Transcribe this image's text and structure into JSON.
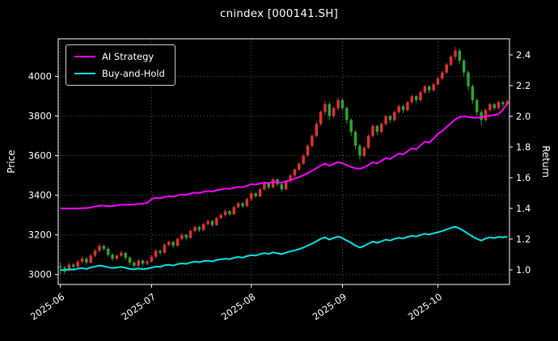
{
  "title": "cnindex [000141.SH]",
  "axes": {
    "left_label": "Price",
    "right_label": "Return",
    "x_ticks": [
      "2025-06",
      "2025-07",
      "2025-08",
      "2025-09",
      "2025-10"
    ],
    "left_ticks": [
      3000,
      3200,
      3400,
      3600,
      3800,
      4000
    ],
    "right_ticks": [
      1.0,
      1.2,
      1.4,
      1.6,
      1.8,
      2.0,
      2.2,
      2.4
    ],
    "price_range": [
      2950,
      4190
    ],
    "return_range": [
      0.905,
      2.505
    ],
    "grid": true
  },
  "legend": {
    "position": "upper-left",
    "items": [
      {
        "label": "AI Strategy",
        "color": "#ff00ff"
      },
      {
        "label": "Buy-and-Hold",
        "color": "#00e5e5"
      }
    ]
  },
  "colors": {
    "background": "#000000",
    "grid": "#555555",
    "spine": "#ffffff",
    "text": "#ffffff",
    "candle_up": "#dd3333",
    "candle_down": "#2fa32f"
  },
  "chart_data": {
    "type": "candlestick+line",
    "title": "cnindex [000141.SH]",
    "xlabel": "",
    "ylabel_left": "Price",
    "ylabel_right": "Return",
    "candle_columns": [
      "open",
      "high",
      "low",
      "close"
    ],
    "month_tick_indices": [
      0,
      21,
      44,
      65,
      87
    ],
    "dates": [
      "2025-06-02",
      "2025-06-03",
      "2025-06-04",
      "2025-06-05",
      "2025-06-06",
      "2025-06-09",
      "2025-06-10",
      "2025-06-11",
      "2025-06-12",
      "2025-06-13",
      "2025-06-16",
      "2025-06-17",
      "2025-06-18",
      "2025-06-19",
      "2025-06-20",
      "2025-06-23",
      "2025-06-24",
      "2025-06-25",
      "2025-06-26",
      "2025-06-27",
      "2025-06-30",
      "2025-07-01",
      "2025-07-02",
      "2025-07-03",
      "2025-07-04",
      "2025-07-07",
      "2025-07-08",
      "2025-07-09",
      "2025-07-10",
      "2025-07-11",
      "2025-07-14",
      "2025-07-15",
      "2025-07-16",
      "2025-07-17",
      "2025-07-18",
      "2025-07-21",
      "2025-07-22",
      "2025-07-23",
      "2025-07-24",
      "2025-07-25",
      "2025-07-28",
      "2025-07-29",
      "2025-07-30",
      "2025-07-31",
      "2025-08-01",
      "2025-08-04",
      "2025-08-05",
      "2025-08-06",
      "2025-08-07",
      "2025-08-08",
      "2025-08-11",
      "2025-08-12",
      "2025-08-13",
      "2025-08-14",
      "2025-08-15",
      "2025-08-18",
      "2025-08-19",
      "2025-08-20",
      "2025-08-21",
      "2025-08-22",
      "2025-08-25",
      "2025-08-26",
      "2025-08-27",
      "2025-08-28",
      "2025-08-29",
      "2025-09-01",
      "2025-09-02",
      "2025-09-03",
      "2025-09-04",
      "2025-09-05",
      "2025-09-08",
      "2025-09-09",
      "2025-09-10",
      "2025-09-11",
      "2025-09-12",
      "2025-09-15",
      "2025-09-16",
      "2025-09-17",
      "2025-09-18",
      "2025-09-19",
      "2025-09-22",
      "2025-09-23",
      "2025-09-24",
      "2025-09-25",
      "2025-09-26",
      "2025-09-29",
      "2025-09-30",
      "2025-10-01",
      "2025-10-02",
      "2025-10-03",
      "2025-10-06",
      "2025-10-07",
      "2025-10-08",
      "2025-10-09",
      "2025-10-10",
      "2025-10-13",
      "2025-10-14",
      "2025-10-15",
      "2025-10-16",
      "2025-10-17",
      "2025-10-20",
      "2025-10-21",
      "2025-10-22",
      "2025-10-23"
    ],
    "candles": [
      [
        3040,
        3060,
        3000,
        3035
      ],
      [
        3035,
        3045,
        3005,
        3020
      ],
      [
        3020,
        3060,
        3015,
        3050
      ],
      [
        3050,
        3058,
        3028,
        3040
      ],
      [
        3040,
        3075,
        3035,
        3065
      ],
      [
        3065,
        3092,
        3055,
        3080
      ],
      [
        3080,
        3088,
        3050,
        3060
      ],
      [
        3060,
        3105,
        3055,
        3095
      ],
      [
        3095,
        3130,
        3088,
        3120
      ],
      [
        3120,
        3158,
        3112,
        3145
      ],
      [
        3145,
        3152,
        3118,
        3130
      ],
      [
        3130,
        3138,
        3090,
        3100
      ],
      [
        3100,
        3110,
        3068,
        3080
      ],
      [
        3080,
        3102,
        3072,
        3095
      ],
      [
        3095,
        3122,
        3088,
        3110
      ],
      [
        3110,
        3115,
        3072,
        3085
      ],
      [
        3085,
        3092,
        3048,
        3060
      ],
      [
        3060,
        3070,
        3032,
        3045
      ],
      [
        3045,
        3080,
        3040,
        3070
      ],
      [
        3070,
        3078,
        3042,
        3055
      ],
      [
        3055,
        3075,
        3048,
        3065
      ],
      [
        3065,
        3098,
        3060,
        3090
      ],
      [
        3090,
        3128,
        3082,
        3120
      ],
      [
        3120,
        3126,
        3098,
        3110
      ],
      [
        3110,
        3158,
        3105,
        3150
      ],
      [
        3150,
        3172,
        3140,
        3165
      ],
      [
        3165,
        3170,
        3135,
        3145
      ],
      [
        3145,
        3188,
        3140,
        3180
      ],
      [
        3180,
        3210,
        3172,
        3200
      ],
      [
        3200,
        3206,
        3172,
        3185
      ],
      [
        3185,
        3228,
        3180,
        3220
      ],
      [
        3220,
        3248,
        3212,
        3240
      ],
      [
        3240,
        3246,
        3215,
        3225
      ],
      [
        3225,
        3262,
        3220,
        3255
      ],
      [
        3255,
        3280,
        3248,
        3270
      ],
      [
        3270,
        3276,
        3240,
        3250
      ],
      [
        3250,
        3292,
        3245,
        3285
      ],
      [
        3285,
        3310,
        3278,
        3300
      ],
      [
        3300,
        3330,
        3292,
        3320
      ],
      [
        3320,
        3326,
        3295,
        3305
      ],
      [
        3305,
        3348,
        3300,
        3340
      ],
      [
        3340,
        3368,
        3332,
        3360
      ],
      [
        3360,
        3366,
        3335,
        3345
      ],
      [
        3345,
        3388,
        3340,
        3380
      ],
      [
        3380,
        3420,
        3372,
        3410
      ],
      [
        3410,
        3416,
        3385,
        3395
      ],
      [
        3395,
        3438,
        3390,
        3430
      ],
      [
        3430,
        3468,
        3422,
        3460
      ],
      [
        3460,
        3466,
        3430,
        3440
      ],
      [
        3440,
        3488,
        3435,
        3480
      ],
      [
        3480,
        3486,
        3445,
        3455
      ],
      [
        3455,
        3462,
        3418,
        3430
      ],
      [
        3430,
        3478,
        3425,
        3470
      ],
      [
        3470,
        3508,
        3462,
        3500
      ],
      [
        3500,
        3538,
        3492,
        3530
      ],
      [
        3530,
        3568,
        3522,
        3560
      ],
      [
        3560,
        3608,
        3552,
        3600
      ],
      [
        3600,
        3658,
        3592,
        3650
      ],
      [
        3650,
        3708,
        3640,
        3700
      ],
      [
        3700,
        3770,
        3692,
        3760
      ],
      [
        3760,
        3828,
        3750,
        3820
      ],
      [
        3820,
        3878,
        3805,
        3860
      ],
      [
        3860,
        3870,
        3780,
        3800
      ],
      [
        3800,
        3850,
        3790,
        3840
      ],
      [
        3840,
        3895,
        3828,
        3880
      ],
      [
        3880,
        3890,
        3825,
        3840
      ],
      [
        3840,
        3848,
        3762,
        3780
      ],
      [
        3780,
        3790,
        3700,
        3720
      ],
      [
        3720,
        3728,
        3632,
        3650
      ],
      [
        3650,
        3660,
        3582,
        3600
      ],
      [
        3600,
        3648,
        3592,
        3640
      ],
      [
        3640,
        3708,
        3632,
        3700
      ],
      [
        3700,
        3758,
        3692,
        3750
      ],
      [
        3750,
        3756,
        3705,
        3720
      ],
      [
        3720,
        3768,
        3712,
        3760
      ],
      [
        3760,
        3808,
        3752,
        3800
      ],
      [
        3800,
        3806,
        3765,
        3780
      ],
      [
        3780,
        3828,
        3772,
        3820
      ],
      [
        3820,
        3858,
        3812,
        3850
      ],
      [
        3850,
        3856,
        3815,
        3830
      ],
      [
        3830,
        3878,
        3822,
        3870
      ],
      [
        3870,
        3908,
        3862,
        3900
      ],
      [
        3900,
        3906,
        3865,
        3880
      ],
      [
        3880,
        3928,
        3872,
        3920
      ],
      [
        3920,
        3958,
        3912,
        3950
      ],
      [
        3950,
        3956,
        3915,
        3930
      ],
      [
        3930,
        3968,
        3922,
        3960
      ],
      [
        3960,
        3998,
        3952,
        3990
      ],
      [
        3990,
        4028,
        3982,
        4020
      ],
      [
        4020,
        4068,
        4012,
        4060
      ],
      [
        4060,
        4108,
        4052,
        4100
      ],
      [
        4100,
        4148,
        4085,
        4130
      ],
      [
        4130,
        4140,
        4062,
        4080
      ],
      [
        4080,
        4090,
        4000,
        4020
      ],
      [
        4020,
        4030,
        3932,
        3950
      ],
      [
        3950,
        3960,
        3862,
        3880
      ],
      [
        3880,
        3890,
        3800,
        3820
      ],
      [
        3820,
        3832,
        3752,
        3780
      ],
      [
        3780,
        3838,
        3772,
        3830
      ],
      [
        3830,
        3868,
        3822,
        3860
      ],
      [
        3860,
        3866,
        3828,
        3840
      ],
      [
        3840,
        3878,
        3832,
        3870
      ],
      [
        3870,
        3876,
        3845,
        3860
      ],
      [
        3860,
        3885,
        3850,
        3875
      ]
    ],
    "series": [
      {
        "name": "AI Strategy",
        "axis": "return",
        "color": "#ff00ff",
        "values": [
          1.4,
          1.4,
          1.4,
          1.4,
          1.4,
          1.402,
          1.402,
          1.406,
          1.412,
          1.418,
          1.418,
          1.415,
          1.415,
          1.42,
          1.424,
          1.424,
          1.424,
          1.426,
          1.43,
          1.432,
          1.436,
          1.462,
          1.468,
          1.466,
          1.474,
          1.48,
          1.477,
          1.485,
          1.491,
          1.488,
          1.497,
          1.503,
          1.5,
          1.508,
          1.513,
          1.51,
          1.518,
          1.524,
          1.53,
          1.527,
          1.535,
          1.541,
          1.538,
          1.547,
          1.558,
          1.555,
          1.562,
          1.568,
          1.565,
          1.574,
          1.57,
          1.567,
          1.576,
          1.585,
          1.594,
          1.604,
          1.616,
          1.63,
          1.645,
          1.662,
          1.68,
          1.692,
          1.678,
          1.69,
          1.702,
          1.694,
          1.682,
          1.67,
          1.662,
          1.658,
          1.668,
          1.684,
          1.7,
          1.694,
          1.71,
          1.728,
          1.722,
          1.74,
          1.758,
          1.752,
          1.772,
          1.792,
          1.786,
          1.81,
          1.835,
          1.828,
          1.855,
          1.885,
          1.905,
          1.93,
          1.955,
          1.98,
          1.995,
          2.0,
          1.996,
          1.992,
          1.99,
          1.994,
          2.0,
          2.004,
          2.008,
          2.015,
          2.045,
          2.08
        ]
      },
      {
        "name": "Buy-and-Hold",
        "axis": "return",
        "color": "#00e5e5",
        "values": [
          1.0,
          0.996,
          1.004,
          1.001,
          1.008,
          1.012,
          1.006,
          1.015,
          1.022,
          1.028,
          1.024,
          1.017,
          1.012,
          1.015,
          1.019,
          1.013,
          1.006,
          1.003,
          1.009,
          1.005,
          1.008,
          1.014,
          1.022,
          1.019,
          1.03,
          1.033,
          1.028,
          1.037,
          1.042,
          1.039,
          1.048,
          1.053,
          1.049,
          1.057,
          1.06,
          1.055,
          1.064,
          1.068,
          1.073,
          1.069,
          1.078,
          1.084,
          1.08,
          1.089,
          1.096,
          1.093,
          1.102,
          1.109,
          1.104,
          1.114,
          1.108,
          1.102,
          1.112,
          1.12,
          1.127,
          1.135,
          1.145,
          1.158,
          1.171,
          1.186,
          1.202,
          1.212,
          1.197,
          1.207,
          1.217,
          1.207,
          1.191,
          1.176,
          1.158,
          1.145,
          1.155,
          1.171,
          1.184,
          1.176,
          1.186,
          1.197,
          1.191,
          1.202,
          1.209,
          1.204,
          1.215,
          1.222,
          1.217,
          1.227,
          1.235,
          1.23,
          1.238,
          1.245,
          1.253,
          1.263,
          1.274,
          1.281,
          1.269,
          1.253,
          1.235,
          1.217,
          1.202,
          1.191,
          1.204,
          1.212,
          1.207,
          1.215,
          1.212,
          1.216
        ]
      }
    ]
  }
}
